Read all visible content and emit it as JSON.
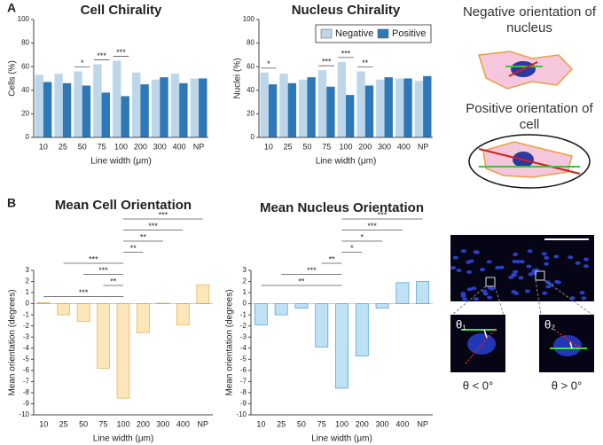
{
  "labels": {
    "a": "A",
    "b": "B"
  },
  "chart_data": [
    {
      "type": "bar",
      "title": "Cell Chirality",
      "x_label": "Line width (μm)",
      "y_label": "Cells (%)",
      "categories": [
        "10",
        "25",
        "50",
        "75",
        "100",
        "200",
        "300",
        "400",
        "NP"
      ],
      "series": [
        {
          "name": "Negative",
          "color": "#bcd6ea",
          "values": [
            53,
            54,
            56,
            62,
            65,
            55,
            49,
            54,
            50
          ]
        },
        {
          "name": "Positive",
          "color": "#2f78b7",
          "values": [
            47,
            46,
            44,
            38,
            35,
            45,
            51,
            46,
            50
          ]
        }
      ],
      "ylim": [
        0,
        100
      ],
      "yticks": [
        0,
        20,
        40,
        60,
        80,
        100
      ],
      "legend": false,
      "significance": [
        {
          "from": "50",
          "to": "50",
          "label": "*"
        },
        {
          "from": "75",
          "to": "75",
          "label": "***"
        },
        {
          "from": "100",
          "to": "100",
          "label": "***"
        }
      ]
    },
    {
      "type": "bar",
      "title": "Nucleus Chirality",
      "x_label": "Line width (μm)",
      "y_label": "Nuclei (%)",
      "categories": [
        "10",
        "25",
        "50",
        "75",
        "100",
        "200",
        "300",
        "400",
        "NP"
      ],
      "series": [
        {
          "name": "Negative",
          "color": "#bcd6ea",
          "values": [
            55,
            54,
            49,
            57,
            64,
            56,
            49,
            50,
            48
          ]
        },
        {
          "name": "Positive",
          "color": "#2f78b7",
          "values": [
            45,
            46,
            51,
            43,
            36,
            44,
            51,
            50,
            52
          ]
        }
      ],
      "ylim": [
        0,
        100
      ],
      "yticks": [
        0,
        20,
        40,
        60,
        80,
        100
      ],
      "legend": true,
      "legend_position": "top-right",
      "significance": [
        {
          "from": "10",
          "to": "10",
          "label": "*"
        },
        {
          "from": "75",
          "to": "75",
          "label": "***"
        },
        {
          "from": "100",
          "to": "100",
          "label": "***"
        },
        {
          "from": "200",
          "to": "200",
          "label": "**"
        }
      ]
    },
    {
      "type": "bar",
      "title": "Mean Cell Orientation",
      "x_label": "Line width (μm)",
      "y_label": "Mean orientation (degrees)",
      "categories": [
        "10",
        "25",
        "50",
        "75",
        "100",
        "200",
        "300",
        "400",
        "NP"
      ],
      "values": [
        0.1,
        -1,
        -1.6,
        -5.8,
        -8.5,
        -2.6,
        0.05,
        -1.9,
        1.7
      ],
      "color": "#fde6b8",
      "edge_color": "#e3b665",
      "ylim": [
        -10,
        3
      ],
      "yticks": [
        -10,
        -9,
        -8,
        -7,
        -6,
        -5,
        -4,
        -3,
        -2,
        -1,
        0,
        1,
        2,
        3
      ],
      "significance": [
        {
          "from": "100",
          "to": "NP",
          "label": "***"
        },
        {
          "from": "100",
          "to": "400",
          "label": "***"
        },
        {
          "from": "100",
          "to": "300",
          "label": "**"
        },
        {
          "from": "100",
          "to": "200",
          "label": "**"
        },
        {
          "from": "25",
          "to": "100",
          "label": "***"
        },
        {
          "from": "50",
          "to": "100",
          "label": "***"
        },
        {
          "from": "75",
          "to": "100",
          "label": "**"
        },
        {
          "from": "10",
          "to": "100",
          "label": "***"
        }
      ]
    },
    {
      "type": "bar",
      "title": "Mean Nucleus Orientation",
      "x_label": "Line width (μm)",
      "y_label": "Mean orientation (degrees)",
      "categories": [
        "10",
        "25",
        "50",
        "75",
        "100",
        "200",
        "300",
        "400",
        "NP"
      ],
      "values": [
        -1.9,
        -1,
        -0.4,
        -3.9,
        -7.6,
        -4.7,
        -0.4,
        1.9,
        2.0
      ],
      "color": "#bfe1f6",
      "edge_color": "#5aa8d8",
      "ylim": [
        -10,
        3
      ],
      "yticks": [
        -10,
        -9,
        -8,
        -7,
        -6,
        -5,
        -4,
        -3,
        -2,
        -1,
        0,
        1,
        2,
        3
      ],
      "significance": [
        {
          "from": "100",
          "to": "NP",
          "label": "***"
        },
        {
          "from": "100",
          "to": "400",
          "label": "***"
        },
        {
          "from": "100",
          "to": "300",
          "label": "*"
        },
        {
          "from": "100",
          "to": "200",
          "label": "*"
        },
        {
          "from": "75",
          "to": "100",
          "label": "**"
        },
        {
          "from": "25",
          "to": "100",
          "label": "***"
        },
        {
          "from": "10",
          "to": "100",
          "label": "**"
        }
      ]
    }
  ],
  "illustrations": {
    "nucleus_caption": "Negative orientation of nucleus",
    "cell_caption": "Positive orientation of cell",
    "theta1": "θ₁",
    "theta2": "θ₂",
    "negative_angle": "θ < 0°",
    "positive_angle": "θ > 0°"
  }
}
